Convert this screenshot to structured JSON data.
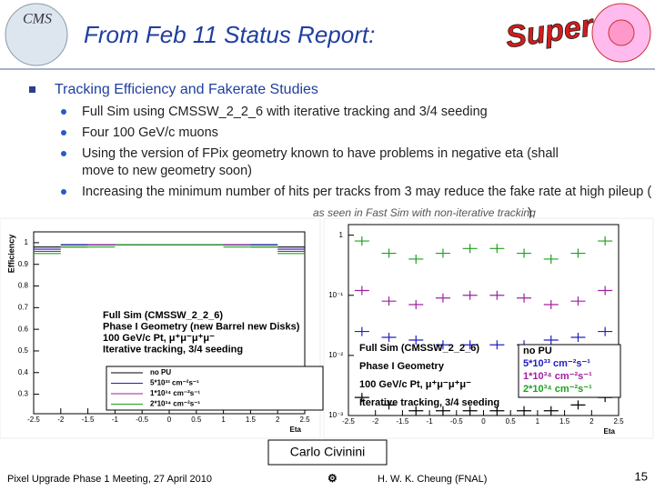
{
  "header": {
    "title": "From Feb 11 Status Report:",
    "logo_left": "CMS",
    "logo_right": "Super"
  },
  "body": {
    "heading": "Tracking Efficiency and Fakerate Studies",
    "items": [
      "Full Sim using CMSSW_2_2_6 with iterative tracking and 3/4 seeding",
      "Four 100 GeV/c  muons",
      "Using the version of FPix geometry known to have problems in negative eta (shall move to new geometry soon)"
    ],
    "last_item": {
      "text": "Increasing the minimum number of hits per tracks from 3 may reduce the fake rate at high pileup (",
      "aside": "as seen in Fast Sim with non-iterative tracking",
      "close": ")"
    }
  },
  "plots": [
    {
      "type": "step",
      "ylabel": "Efficiency",
      "xlabel": "Eta",
      "xlim": [
        -2.5,
        2.5
      ],
      "ylim": [
        0.21,
        1.05
      ],
      "xticks": [
        -2.5,
        -2,
        -1.5,
        -1,
        -0.5,
        0,
        0.5,
        1,
        1.5,
        2,
        2.5
      ],
      "yticks": [
        0.3,
        0.4,
        0.5,
        0.6,
        0.7,
        0.8,
        0.9,
        1
      ],
      "log_y": false,
      "annotations": [
        "Full Sim (CMSSW_2_2_6)",
        "Phase I Geometry (new Barrel new Disks)",
        "100 GeV/c Pt, μ⁺μ⁻μ⁺μ⁻",
        "Iterative tracking, 3/4 seeding"
      ],
      "x": [
        -2.25,
        -1.75,
        -1.25,
        -0.75,
        -0.25,
        0.25,
        0.75,
        1.25,
        1.75,
        2.25
      ],
      "series": [
        {
          "name": "no PU",
          "color": "#000000",
          "values": [
            0.98,
            0.99,
            0.99,
            0.99,
            0.99,
            0.99,
            0.99,
            0.99,
            0.99,
            0.98
          ]
        },
        {
          "name": "5*10³³ cm⁻²s⁻¹",
          "color": "#2020c0",
          "values": [
            0.97,
            0.99,
            0.99,
            0.99,
            0.99,
            0.99,
            0.99,
            0.99,
            0.99,
            0.97
          ]
        },
        {
          "name": "1*10³⁴ cm⁻²s⁻¹",
          "color": "#a020a0",
          "values": [
            0.96,
            0.98,
            0.99,
            0.99,
            0.99,
            0.99,
            0.99,
            0.99,
            0.98,
            0.96
          ]
        },
        {
          "name": "2*10³⁴ cm⁻²s⁻¹",
          "color": "#20a020",
          "values": [
            0.95,
            0.98,
            0.98,
            0.99,
            0.99,
            0.99,
            0.99,
            0.98,
            0.98,
            0.95
          ]
        }
      ]
    },
    {
      "type": "cross",
      "xlabel": "Eta",
      "xlim": [
        -2.5,
        2.5
      ],
      "ylim": [
        0.001,
        1.5
      ],
      "xticks": [
        -2.5,
        -2,
        -1.5,
        -1,
        -0.5,
        0,
        0.5,
        1,
        1.5,
        2,
        2.5
      ],
      "yticks": [
        {
          "value": 0.001,
          "label": "10⁻³"
        },
        {
          "value": 0.01,
          "label": "10⁻²"
        },
        {
          "value": 0.1,
          "label": "10⁻¹"
        },
        1
      ],
      "log_y": true,
      "annotations": [
        "Full Sim (CMSSW_2_2_6)",
        "Phase I Geometry",
        "100 GeV/c Pt, μ⁺μ⁻μ⁺μ⁻",
        "Iterative tracking, 3/4 seeding"
      ],
      "x": [
        -2.25,
        -1.75,
        -1.25,
        -0.75,
        -0.25,
        0.25,
        0.75,
        1.25,
        1.75,
        2.25
      ],
      "series": [
        {
          "name": "no PU",
          "color": "#000000",
          "values": [
            0.002,
            0.0015,
            0.0012,
            0.0012,
            0.0012,
            0.0012,
            0.0012,
            0.0012,
            0.0015,
            0.002
          ]
        },
        {
          "name": "5*10³³ cm⁻²s⁻¹",
          "color": "#2020c0",
          "values": [
            0.025,
            0.02,
            0.018,
            0.015,
            0.015,
            0.015,
            0.015,
            0.018,
            0.02,
            0.025
          ]
        },
        {
          "name": "1*10³⁴ cm⁻²s⁻¹",
          "color": "#a020a0",
          "values": [
            0.12,
            0.08,
            0.07,
            0.09,
            0.1,
            0.1,
            0.09,
            0.07,
            0.08,
            0.12
          ]
        },
        {
          "name": "2*10³⁴ cm⁻²s⁻¹",
          "color": "#20a020",
          "values": [
            0.8,
            0.5,
            0.4,
            0.5,
            0.6,
            0.6,
            0.5,
            0.4,
            0.5,
            0.8
          ]
        }
      ]
    }
  ],
  "presenter": "Carlo Civinini",
  "footer": {
    "left": "Pixel Upgrade Phase 1 Meeting, 27 April 2010",
    "center": "H. W. K. Cheung (FNAL)",
    "page": "15"
  }
}
